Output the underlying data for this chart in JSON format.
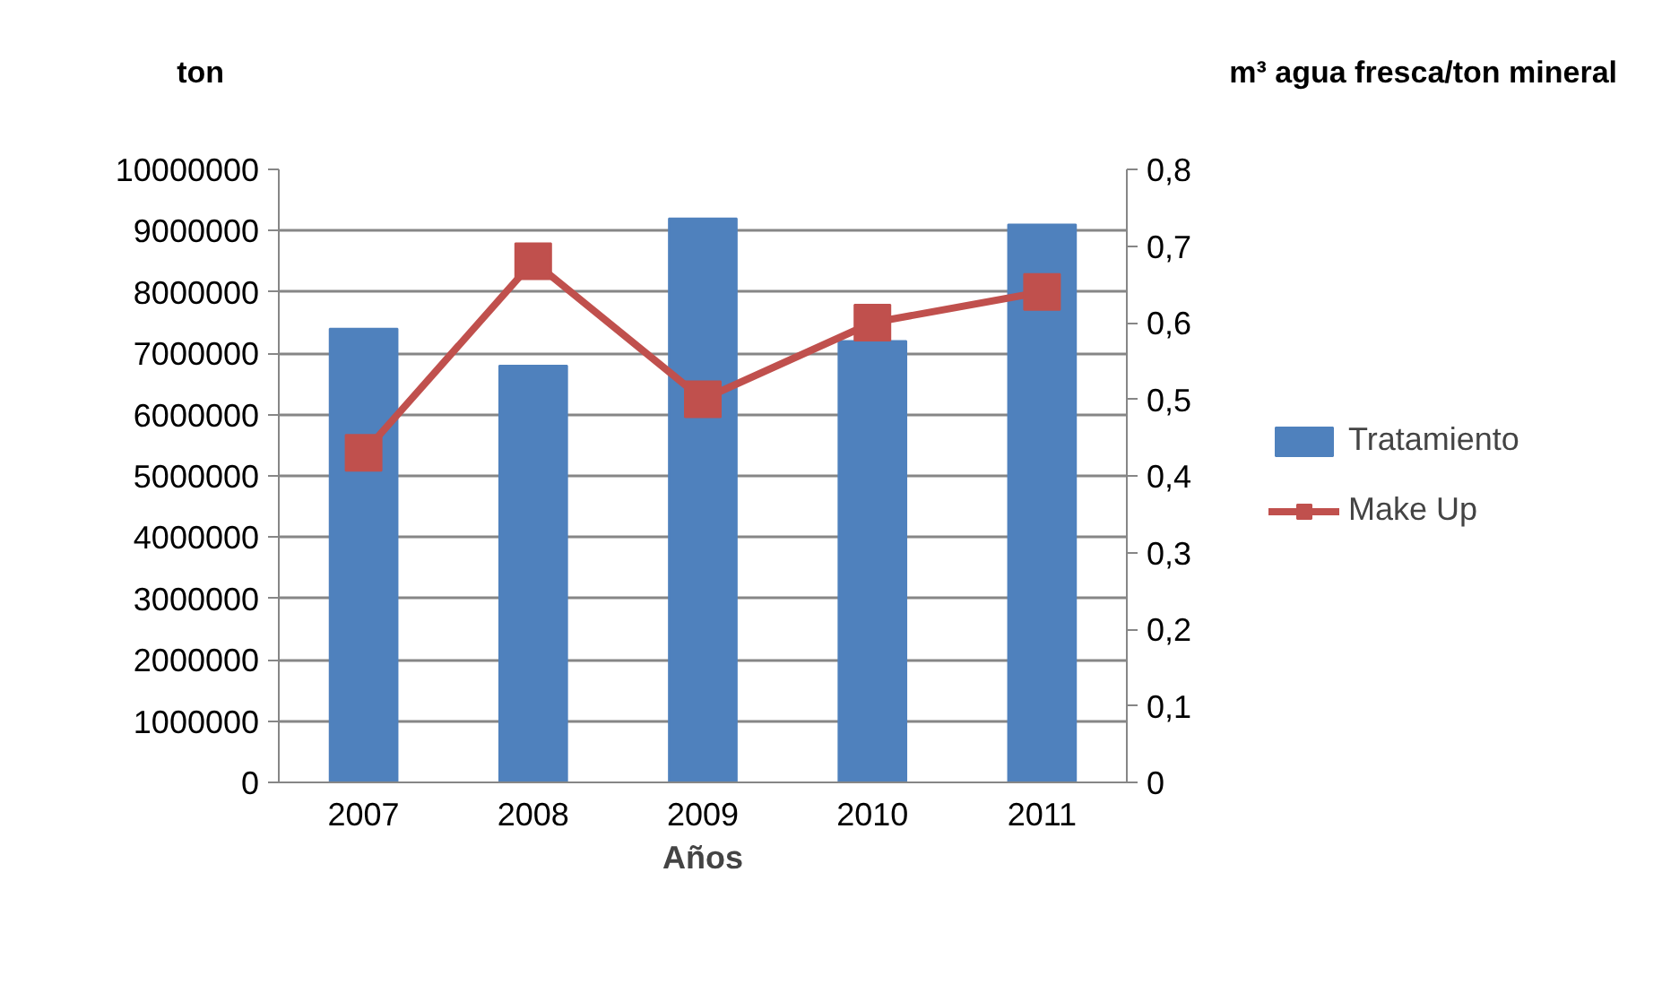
{
  "chart_data": {
    "type": "bar",
    "xlabel": "Años",
    "ylabel": "ton",
    "y2label": "m³ agua fresca/ton mineral",
    "categories": [
      "2007",
      "2008",
      "2009",
      "2010",
      "2011"
    ],
    "series": [
      {
        "name": "Tratamiento",
        "color": "#4f81bd",
        "values": [
          7400000,
          6800000,
          9200000,
          7200000,
          9100000
        ]
      },
      {
        "name": "Make Up",
        "type": "line",
        "axis": "y2",
        "color": "#c0504d",
        "marker": "square",
        "values": [
          0.43,
          0.68,
          0.5,
          0.6,
          0.64
        ]
      }
    ],
    "ylim": [
      0,
      10000000
    ],
    "yticks": [
      0,
      1000000,
      2000000,
      3000000,
      4000000,
      5000000,
      6000000,
      7000000,
      8000000,
      9000000,
      10000000
    ],
    "y2lim": [
      0,
      0.8
    ],
    "y2ticks": [
      0,
      {
        "value": 0.1,
        "label": "0,1"
      },
      {
        "value": 0.2,
        "label": "0,2"
      },
      {
        "value": 0.3,
        "label": "0,3"
      },
      {
        "value": 0.4,
        "label": "0,4"
      },
      {
        "value": 0.5,
        "label": "0,5"
      },
      {
        "value": 0.6,
        "label": "0,6"
      },
      {
        "value": 0.7,
        "label": "0,7"
      },
      {
        "value": 0.8,
        "label": "0,8"
      }
    ],
    "grid": "y",
    "legend": "right"
  }
}
